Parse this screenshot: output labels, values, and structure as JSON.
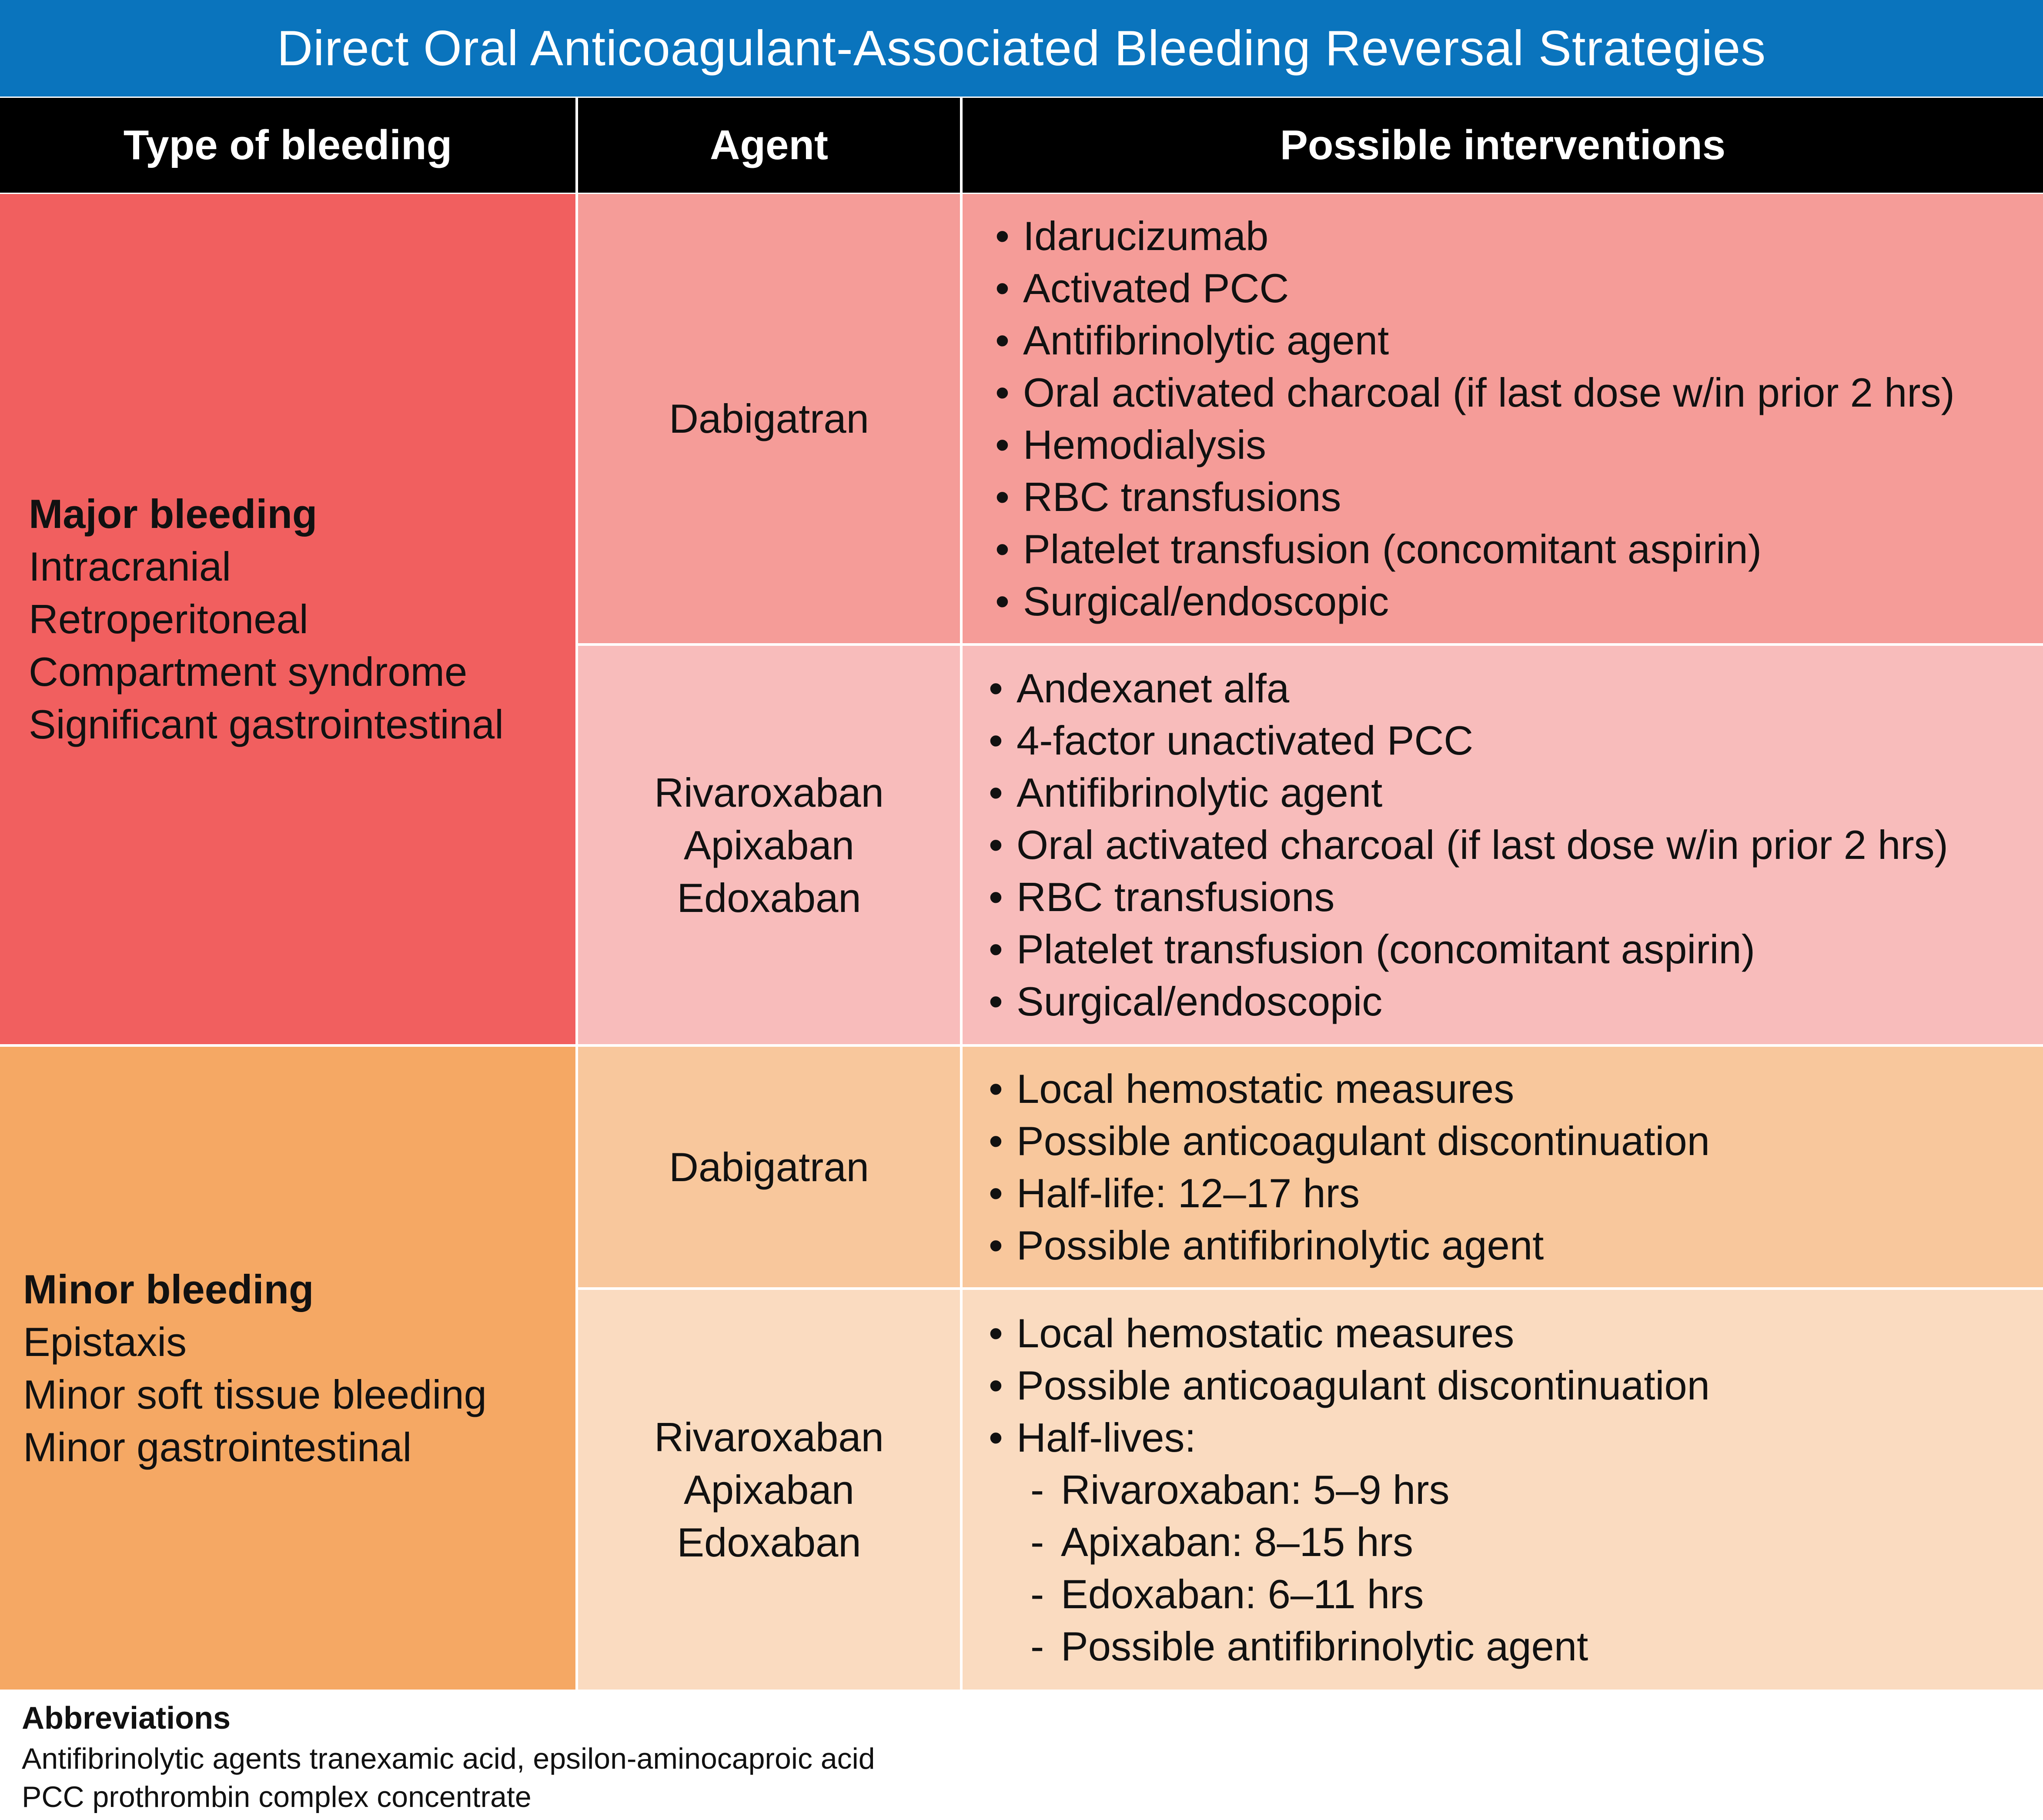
{
  "title": "Direct Oral Anticoagulant-Associated Bleeding Reversal Strategies",
  "colors": {
    "title_bg": "#0a74bd",
    "header_bg": "#000000",
    "major_group": "#f15f5f",
    "major_dabigatran": "#f59c98",
    "major_xa": "#f8bcbb",
    "minor_group": "#f5a864",
    "minor_dabigatran": "#f8c79c",
    "minor_xa": "#fadbc0"
  },
  "headers": {
    "type": "Type of bleeding",
    "agent": "Agent",
    "interventions": "Possible interventions"
  },
  "major": {
    "title": "Major bleeding",
    "items": [
      "Intracranial",
      "Retroperitoneal",
      "Compartment syndrome",
      "Significant gastrointestinal"
    ],
    "rows": [
      {
        "agents": [
          "Dabigatran"
        ],
        "interventions": [
          "Idarucizumab",
          "Activated PCC",
          "Antifibrinolytic agent",
          "Oral activated charcoal (if last dose w/in prior 2 hrs)",
          "Hemodialysis",
          "RBC transfusions",
          "Platelet transfusion (concomitant aspirin)",
          "Surgical/endoscopic"
        ]
      },
      {
        "agents": [
          "Rivaroxaban",
          "Apixaban",
          "Edoxaban"
        ],
        "interventions": [
          "Andexanet alfa",
          "4-factor unactivated PCC",
          "Antifibrinolytic agent",
          "Oral activated charcoal (if last dose w/in prior 2 hrs)",
          "RBC transfusions",
          "Platelet transfusion (concomitant aspirin)",
          "Surgical/endoscopic"
        ]
      }
    ]
  },
  "minor": {
    "title": "Minor bleeding",
    "items": [
      "Epistaxis",
      "Minor soft tissue bleeding",
      "Minor gastrointestinal"
    ],
    "rows": [
      {
        "agents": [
          "Dabigatran"
        ],
        "interventions": [
          "Local hemostatic measures",
          "Possible anticoagulant discontinuation",
          "Half-life: 12–17 hrs",
          "Possible antifibrinolytic agent"
        ]
      },
      {
        "agents": [
          "Rivaroxaban",
          "Apixaban",
          "Edoxaban"
        ],
        "interventions": [
          "Local hemostatic measures",
          "Possible anticoagulant discontinuation",
          "Half-lives:"
        ],
        "sub_items": [
          "Rivaroxaban: 5–9 hrs",
          "Apixaban: 8–15 hrs",
          "Edoxaban: 6–11 hrs",
          "Possible antifibrinolytic agent"
        ]
      }
    ]
  },
  "abbreviations": {
    "title": "Abbreviations",
    "lines": [
      "Antifibrinolytic agents tranexamic acid, epsilon-aminocaproic acid",
      "PCC prothrombin complex concentrate"
    ]
  }
}
